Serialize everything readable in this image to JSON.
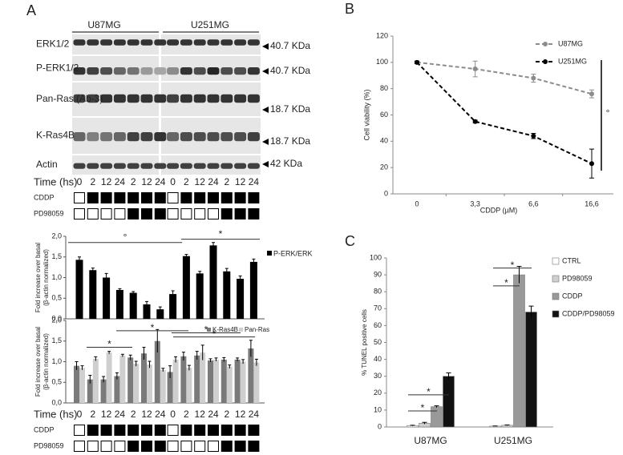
{
  "panel_labels": [
    "A",
    "B",
    "C"
  ],
  "blot": {
    "cell_lines": [
      "U87MG",
      "U251MG"
    ],
    "rows": [
      {
        "label": "ERK1/2",
        "kda": "40.7 KDa"
      },
      {
        "label": "P-ERK1/2",
        "kda": "40.7 KDa"
      },
      {
        "label": "Pan-Ras (Ab-3)",
        "kda": "18.7 KDa"
      },
      {
        "label": "K-Ras4B",
        "kda": "18.7 KDa"
      },
      {
        "label": "Actin",
        "kda": "42 KDa"
      }
    ]
  },
  "treatment": {
    "time_label": "Time (hs)",
    "times": [
      0,
      2,
      12,
      24,
      2,
      12,
      24,
      0,
      2,
      12,
      24,
      2,
      12,
      24
    ],
    "rows": [
      {
        "label": "CDDP",
        "on": [
          0,
          1,
          1,
          1,
          1,
          1,
          1,
          0,
          1,
          1,
          1,
          1,
          1,
          1
        ]
      },
      {
        "label": "PD98059",
        "on": [
          0,
          0,
          0,
          0,
          1,
          1,
          1,
          0,
          0,
          0,
          0,
          1,
          1,
          1
        ]
      }
    ]
  },
  "chart_data": [
    {
      "type": "bar",
      "ylabel": [
        "Fold increase over basal",
        "(β-actin normalized)"
      ],
      "ylim": [
        0,
        2
      ],
      "yticks": [
        {
          "value": 0,
          "label": "0,0"
        },
        {
          "value": 0.5,
          "label": "0,5"
        },
        {
          "value": 1,
          "label": "1,0"
        },
        {
          "value": 1.5,
          "label": "1,5"
        },
        {
          "value": 2,
          "label": "2,0"
        }
      ],
      "series": [
        {
          "name": "P-ERK/ERK",
          "color": "#000000",
          "values": [
            1.43,
            1.18,
            1.0,
            0.7,
            0.63,
            0.35,
            0.23,
            0.6,
            1.52,
            1.1,
            1.78,
            1.15,
            0.97,
            1.38
          ],
          "errors": [
            0.07,
            0.05,
            0.1,
            0.03,
            0.03,
            0.07,
            0.06,
            0.08,
            0.04,
            0.05,
            0.07,
            0.07,
            0.07,
            0.07
          ]
        }
      ],
      "annotations": [
        "°",
        "*"
      ]
    },
    {
      "type": "bar",
      "ylabel": [
        "Fold increase over basal",
        "(β-actin normalized)"
      ],
      "ylim": [
        0,
        2
      ],
      "yticks": [
        {
          "value": 0,
          "label": "0,0"
        },
        {
          "value": 0.5,
          "label": "0,5"
        },
        {
          "value": 1,
          "label": "1,0"
        },
        {
          "value": 1.5,
          "label": "1,5"
        },
        {
          "value": 2,
          "label": "2,0"
        }
      ],
      "series": [
        {
          "name": "K-Ras4B",
          "color": "#7a7a7a",
          "values": [
            0.9,
            0.57,
            0.57,
            0.65,
            1.1,
            1.2,
            1.5,
            0.75,
            1.13,
            1.15,
            1.03,
            1.05,
            1.05,
            1.32
          ],
          "errors": [
            0.1,
            0.1,
            0.07,
            0.08,
            0.06,
            0.15,
            0.28,
            0.15,
            0.1,
            0.1,
            0.04,
            0.05,
            0.04,
            0.2
          ]
        },
        {
          "name": "Pan-Ras",
          "color": "#cfcfcf",
          "values": [
            0.85,
            1.07,
            1.22,
            1.15,
            0.95,
            0.93,
            0.8,
            1.05,
            0.85,
            1.22,
            1.05,
            0.88,
            1.0,
            0.98
          ],
          "errors": [
            0.05,
            0.05,
            0.03,
            0.03,
            0.06,
            0.08,
            0.04,
            0.07,
            0.06,
            0.18,
            0.04,
            0.04,
            0.05,
            0.08
          ]
        }
      ],
      "annotations": [
        "*",
        "*",
        "*",
        "*"
      ]
    },
    {
      "type": "line",
      "ylabel": "Cell viability (%)",
      "xlabel": "CDDP (µM)",
      "categories": [
        "0",
        "3,3",
        "6,6",
        "16,6"
      ],
      "ylim": [
        0,
        120
      ],
      "yticks": [
        0,
        20,
        40,
        60,
        80,
        100,
        120
      ],
      "series": [
        {
          "name": "U87MG",
          "color": "#8c8c8c",
          "values": [
            100,
            95,
            88,
            76
          ],
          "errors": [
            1,
            6,
            3,
            3
          ]
        },
        {
          "name": "U251MG",
          "color": "#000000",
          "values": [
            100,
            55,
            44,
            23
          ],
          "errors": [
            1,
            1,
            2,
            11
          ]
        }
      ],
      "annotations": [
        "°"
      ]
    },
    {
      "type": "bar",
      "ylabel": "% TUNEL positive cells",
      "categories": [
        "U87MG",
        "U251MG"
      ],
      "ylim": [
        0,
        100
      ],
      "yticks": [
        0,
        10,
        20,
        30,
        40,
        50,
        60,
        70,
        80,
        90,
        100
      ],
      "series": [
        {
          "name": "CTRL",
          "color": "#ffffff",
          "values": [
            0.8,
            0.5
          ],
          "errors": [
            0.2,
            0.1
          ]
        },
        {
          "name": "PD98059",
          "color": "#cfcfcf",
          "values": [
            2.2,
            1.0
          ],
          "errors": [
            0.5,
            0.2
          ]
        },
        {
          "name": "CDDP",
          "color": "#999999",
          "values": [
            12,
            90
          ],
          "errors": [
            0.5,
            5
          ]
        },
        {
          "name": "CDDP/PD98059",
          "color": "#111111",
          "values": [
            30,
            68
          ],
          "errors": [
            2,
            3.5
          ]
        }
      ],
      "annotations": [
        "*",
        "*",
        "*",
        "*"
      ]
    }
  ]
}
